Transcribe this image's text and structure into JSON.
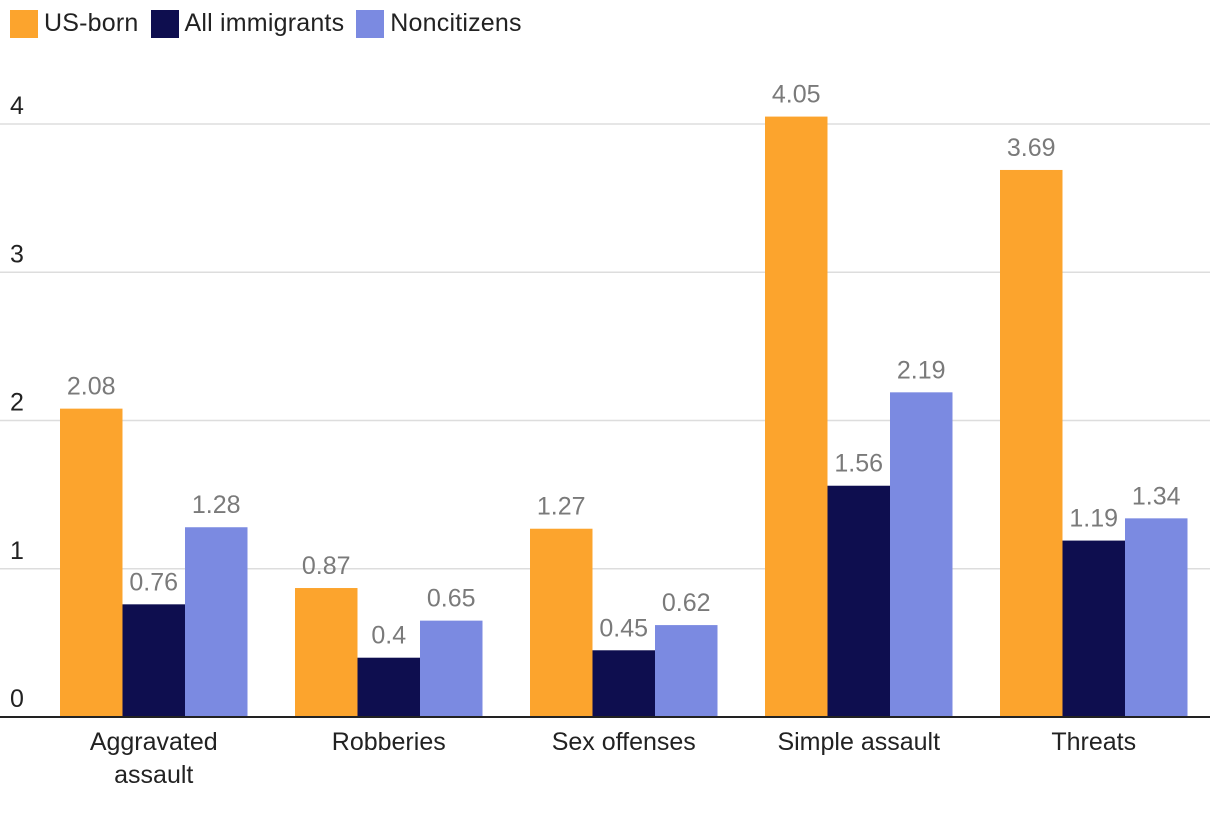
{
  "chart_data": {
    "type": "bar",
    "categories": [
      [
        "Aggravated",
        "assault"
      ],
      [
        "Robberies"
      ],
      [
        "Sex offenses"
      ],
      [
        "Simple assault"
      ],
      [
        "Threats"
      ]
    ],
    "series": [
      {
        "name": "US-born",
        "color": "#fca42d",
        "values": [
          2.08,
          0.87,
          1.27,
          4.05,
          3.69
        ],
        "labels": [
          "2.08",
          "0.87",
          "1.27",
          "4.05",
          "3.69"
        ]
      },
      {
        "name": "All immigrants",
        "color": "#0e0e4f",
        "values": [
          0.76,
          0.4,
          0.45,
          1.56,
          1.19
        ],
        "labels": [
          "0.76",
          "0.4",
          "0.45",
          "1.56",
          "1.19"
        ]
      },
      {
        "name": "Noncitizens",
        "color": "#7b8ae1",
        "values": [
          1.28,
          0.65,
          0.62,
          2.19,
          1.34
        ],
        "labels": [
          "1.28",
          "0.65",
          "0.62",
          "2.19",
          "1.34"
        ]
      }
    ],
    "y_ticks": [
      "0",
      "1",
      "2",
      "3",
      "4"
    ],
    "ylim": [
      0,
      4
    ],
    "grid": true,
    "legend_position": "top-left",
    "title": "",
    "xlabel": "",
    "ylabel": ""
  }
}
